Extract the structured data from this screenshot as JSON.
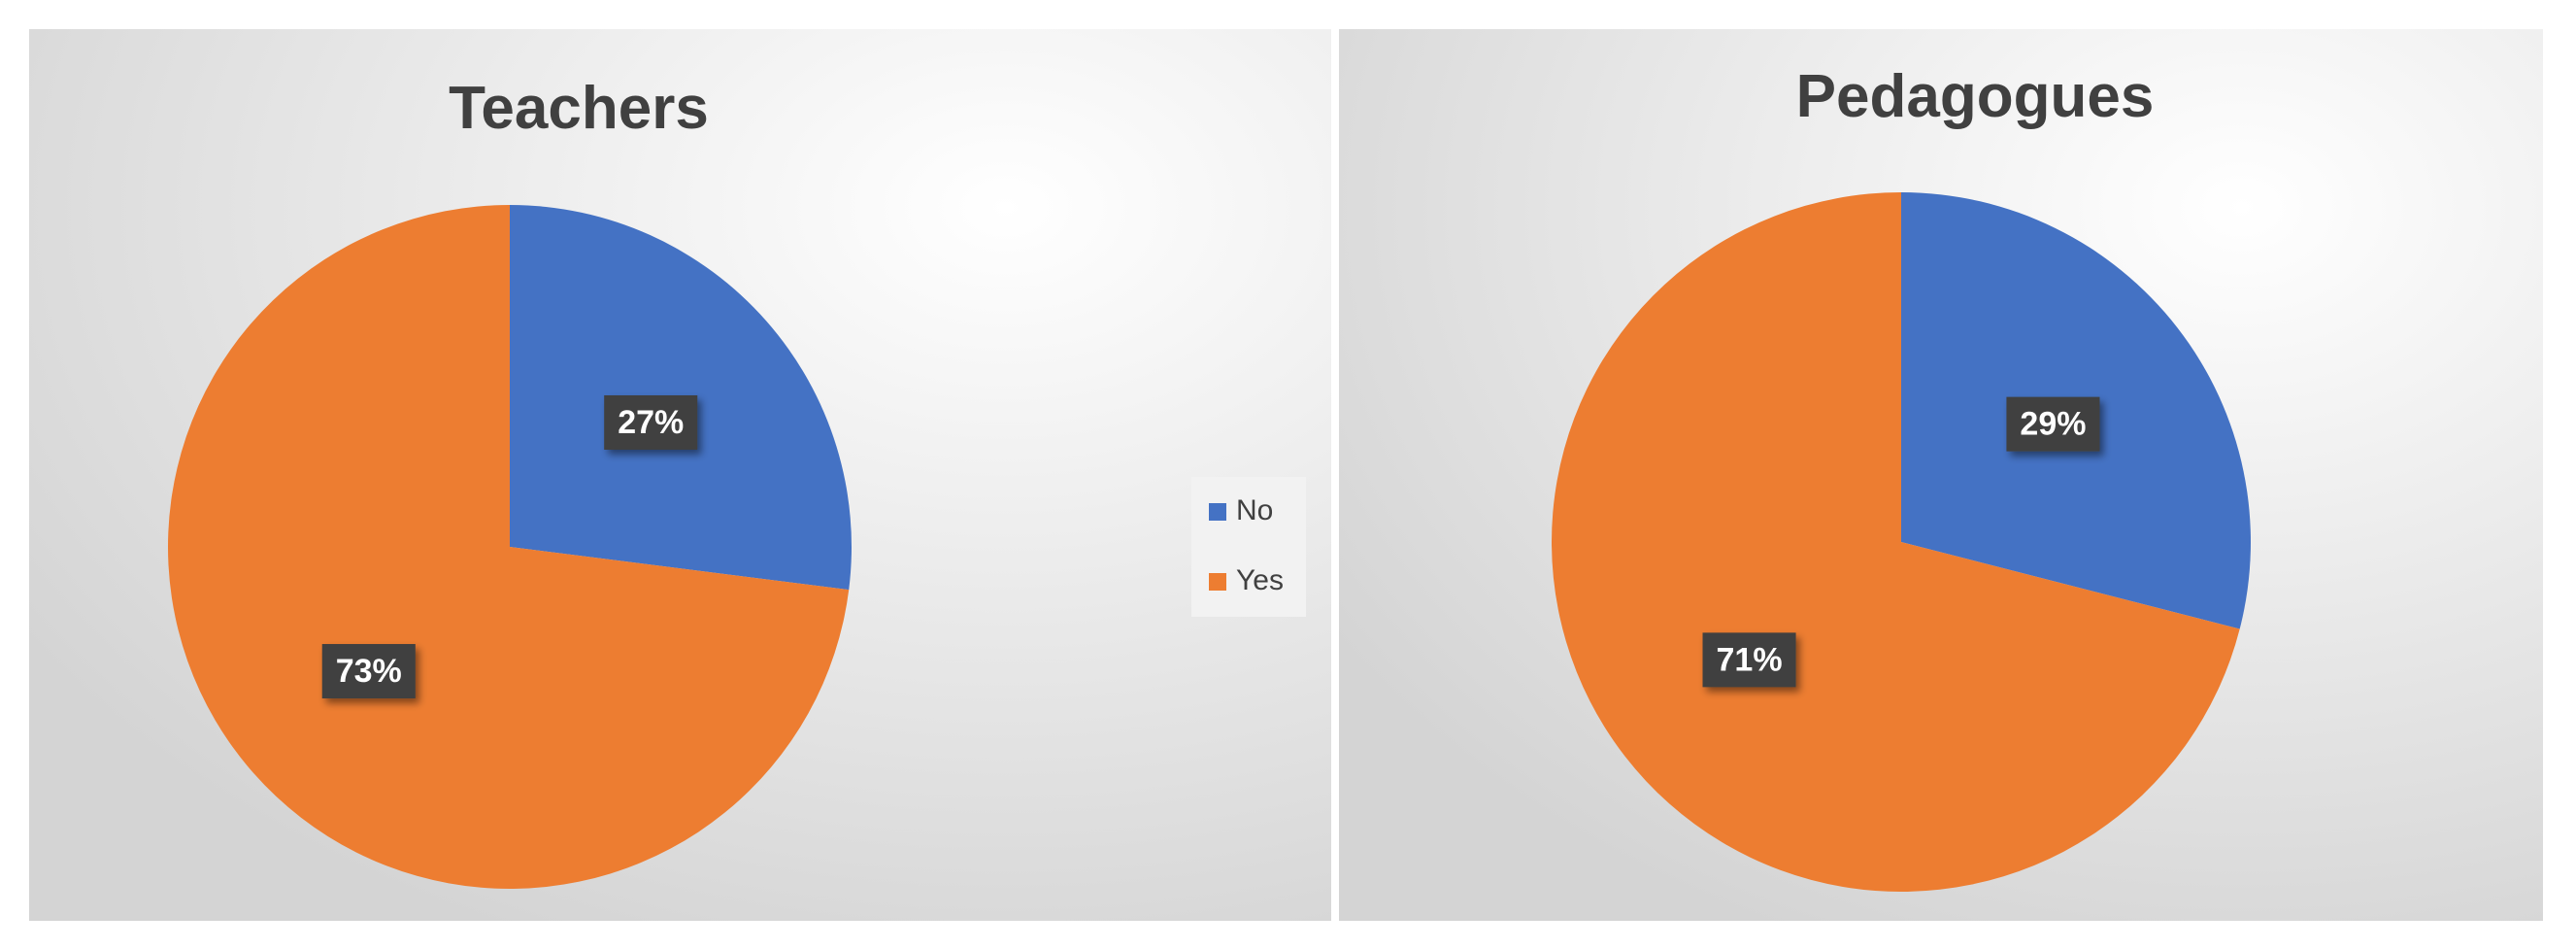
{
  "chart_data": [
    {
      "type": "pie",
      "title": "Teachers",
      "categories": [
        "No",
        "Yes"
      ],
      "values": [
        27,
        73
      ],
      "value_labels": [
        "27%",
        "73%"
      ],
      "colors": [
        "#4472c4",
        "#ed7d31"
      ],
      "legend": true
    },
    {
      "type": "pie",
      "title": "Pedagogues",
      "values": [
        29,
        71
      ],
      "value_labels": [
        "29%",
        "71%"
      ],
      "colors": [
        "#4472c4",
        "#ed7d31"
      ],
      "legend": false
    }
  ]
}
